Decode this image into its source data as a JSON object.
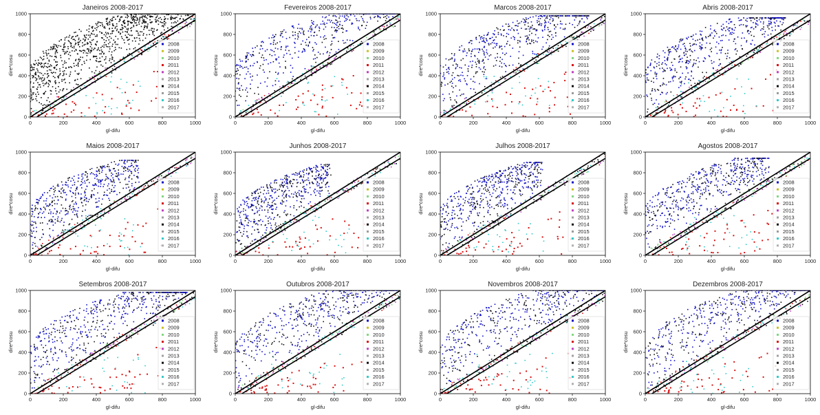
{
  "figure": {
    "colors": {
      "2008": "#1010c8",
      "2009": "#c8c020",
      "2010": "#7fd67f",
      "2011": "#d81010",
      "2012": "#c040c0",
      "2013": "#a0a0a0",
      "2014": "#101010",
      "2015": "#9a9a9a",
      "2016": "#30c8c8",
      "2017": "#b0b0b0",
      "diagonal": "#000000"
    }
  },
  "chart_data": [
    {
      "type": "scatter",
      "title": "Janeiros 2008-2017",
      "xlabel": "gl-difu",
      "ylabel": "dire*cosu",
      "xlim": [
        0,
        1000
      ],
      "ylim": [
        0,
        1000
      ],
      "xticks": [
        "0",
        "200",
        "400",
        "600",
        "800",
        "1000"
      ],
      "yticks": [
        "0",
        "200",
        "400",
        "600",
        "800",
        "1000"
      ],
      "legend": [
        "2008",
        "2009",
        "2010",
        "2011",
        "2012",
        "2013",
        "2014",
        "2015",
        "2016",
        "2017"
      ],
      "legend_position": "right",
      "grid": false
    },
    {
      "type": "scatter",
      "title": "Fevereiros 2008-2017",
      "xlabel": "gl-difu",
      "ylabel": "dire*cosu",
      "xlim": [
        0,
        1000
      ],
      "ylim": [
        0,
        1000
      ],
      "xticks": [
        "0",
        "200",
        "400",
        "600",
        "800",
        "1000"
      ],
      "yticks": [
        "0",
        "200",
        "400",
        "600",
        "800",
        "1000"
      ],
      "legend": [
        "2008",
        "2009",
        "2010",
        "2011",
        "2012",
        "2013",
        "2014",
        "2015",
        "2016",
        "2017"
      ],
      "legend_position": "right",
      "grid": false
    },
    {
      "type": "scatter",
      "title": "Marcos 2008-2017",
      "xlabel": "gl-difu",
      "ylabel": "dire*cosu",
      "xlim": [
        0,
        1000
      ],
      "ylim": [
        0,
        1000
      ],
      "xticks": [
        "0",
        "200",
        "400",
        "600",
        "800",
        "1000"
      ],
      "yticks": [
        "0",
        "200",
        "400",
        "600",
        "800",
        "1000"
      ],
      "legend": [
        "2008",
        "2009",
        "2010",
        "2011",
        "2012",
        "2013",
        "2014",
        "2015",
        "2016",
        "2017"
      ],
      "legend_position": "right",
      "grid": false
    },
    {
      "type": "scatter",
      "title": "Abris 2008-2017",
      "xlabel": "gl-difu",
      "ylabel": "dire*cosu",
      "xlim": [
        0,
        1000
      ],
      "ylim": [
        0,
        1000
      ],
      "xticks": [
        "0",
        "200",
        "400",
        "600",
        "800",
        "1000"
      ],
      "yticks": [
        "0",
        "200",
        "400",
        "600",
        "800",
        "1000"
      ],
      "legend": [
        "2008",
        "2009",
        "2010",
        "2011",
        "2012",
        "2013",
        "2014",
        "2015",
        "2016",
        "2017"
      ],
      "legend_position": "right",
      "grid": false
    },
    {
      "type": "scatter",
      "title": "Maios 2008-2017",
      "xlabel": "gl-difu",
      "ylabel": "dire*cosu",
      "xlim": [
        0,
        1000
      ],
      "ylim": [
        0,
        1000
      ],
      "xticks": [
        "0",
        "200",
        "400",
        "600",
        "800",
        "1000"
      ],
      "yticks": [
        "0",
        "200",
        "400",
        "600",
        "800",
        "1000"
      ],
      "legend": [
        "2008",
        "2009",
        "2010",
        "2011",
        "2012",
        "2013",
        "2014",
        "2015",
        "2016",
        "2017"
      ],
      "legend_position": "right",
      "grid": false
    },
    {
      "type": "scatter",
      "title": "Junhos 2008-2017",
      "xlabel": "gl-difu",
      "ylabel": "dire*cosu",
      "xlim": [
        0,
        1000
      ],
      "ylim": [
        0,
        1000
      ],
      "xticks": [
        "0",
        "200",
        "400",
        "600",
        "800",
        "1000"
      ],
      "yticks": [
        "0",
        "200",
        "400",
        "600",
        "800",
        "1000"
      ],
      "legend": [
        "2008",
        "2009",
        "2010",
        "2011",
        "2012",
        "2013",
        "2014",
        "2015",
        "2016",
        "2017"
      ],
      "legend_position": "right",
      "grid": false
    },
    {
      "type": "scatter",
      "title": "Julhos 2008-2017",
      "xlabel": "gl-difu",
      "ylabel": "dire*cosu",
      "xlim": [
        0,
        1000
      ],
      "ylim": [
        0,
        1000
      ],
      "xticks": [
        "0",
        "200",
        "400",
        "600",
        "800",
        "1000"
      ],
      "yticks": [
        "0",
        "200",
        "400",
        "600",
        "800",
        "1000"
      ],
      "legend": [
        "2008",
        "2009",
        "2010",
        "2011",
        "2012",
        "2013",
        "2014",
        "2015",
        "2016",
        "2017"
      ],
      "legend_position": "right",
      "grid": false
    },
    {
      "type": "scatter",
      "title": "Agostos 2008-2017",
      "xlabel": "gl-difu",
      "ylabel": "dire*cosu",
      "xlim": [
        0,
        1000
      ],
      "ylim": [
        0,
        1000
      ],
      "xticks": [
        "0",
        "200",
        "400",
        "600",
        "800",
        "1000"
      ],
      "yticks": [
        "0",
        "200",
        "400",
        "600",
        "800",
        "1000"
      ],
      "legend": [
        "2008",
        "2009",
        "2010",
        "2011",
        "2012",
        "2013",
        "2014",
        "2015",
        "2016",
        "2017"
      ],
      "legend_position": "right",
      "grid": false
    },
    {
      "type": "scatter",
      "title": "Setembros 2008-2017",
      "xlabel": "gl-difu",
      "ylabel": "dire*cosu",
      "xlim": [
        0,
        1000
      ],
      "ylim": [
        0,
        1000
      ],
      "xticks": [
        "0",
        "200",
        "400",
        "600",
        "800",
        "1000"
      ],
      "yticks": [
        "0",
        "200",
        "400",
        "600",
        "800",
        "1000"
      ],
      "legend": [
        "2008",
        "2009",
        "2010",
        "2011",
        "2012",
        "2013",
        "2014",
        "2015",
        "2016",
        "2017"
      ],
      "legend_position": "right",
      "grid": false
    },
    {
      "type": "scatter",
      "title": "Outubros 2008-2017",
      "xlabel": "gl-difu",
      "ylabel": "dire*cosu",
      "xlim": [
        0,
        1000
      ],
      "ylim": [
        0,
        1000
      ],
      "xticks": [
        "0",
        "200",
        "400",
        "600",
        "800",
        "1000"
      ],
      "yticks": [
        "0",
        "200",
        "400",
        "600",
        "800",
        "1000"
      ],
      "legend": [
        "2008",
        "2009",
        "2010",
        "2011",
        "2012",
        "2013",
        "2014",
        "2015",
        "2016",
        "2017"
      ],
      "legend_position": "right",
      "grid": false
    },
    {
      "type": "scatter",
      "title": "Novembros 2008-2017",
      "xlabel": "gl-difu",
      "ylabel": "dire*cosu",
      "xlim": [
        0,
        1000
      ],
      "ylim": [
        0,
        1000
      ],
      "xticks": [
        "0",
        "200",
        "400",
        "600",
        "800",
        "1000"
      ],
      "yticks": [
        "0",
        "200",
        "400",
        "600",
        "800",
        "1000"
      ],
      "legend": [
        "2008",
        "2009",
        "2010",
        "2011",
        "2012",
        "2013",
        "2014",
        "2015",
        "2016",
        "2017"
      ],
      "legend_position": "right",
      "grid": false
    },
    {
      "type": "scatter",
      "title": "Dezembros 2008-2017",
      "xlabel": "gl-difu",
      "ylabel": "dire*cosu",
      "xlim": [
        0,
        1000
      ],
      "ylim": [
        0,
        1000
      ],
      "xticks": [
        "0",
        "200",
        "400",
        "600",
        "800",
        "1000"
      ],
      "yticks": [
        "0",
        "200",
        "400",
        "600",
        "800",
        "1000"
      ],
      "legend": [
        "2008",
        "2009",
        "2010",
        "2011",
        "2012",
        "2013",
        "2014",
        "2015",
        "2016",
        "2017"
      ],
      "legend_position": "right",
      "grid": false
    }
  ]
}
